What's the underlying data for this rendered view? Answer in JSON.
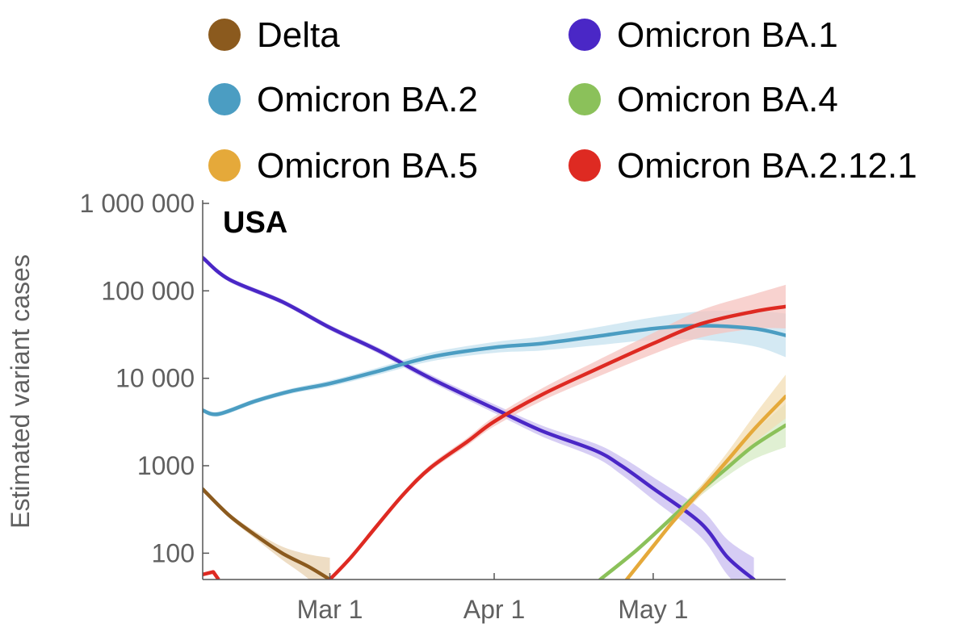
{
  "chart_data": {
    "type": "line",
    "title": "USA",
    "ylabel": "Estimated variant cases",
    "xlabel": "",
    "yscale": "log",
    "ylim": [
      50,
      1000000
    ],
    "xlim": [
      "2022-02-05",
      "2022-05-26"
    ],
    "x_ticks": [
      {
        "date": "2022-03-01",
        "label": "Mar 1"
      },
      {
        "date": "2022-04-01",
        "label": "Apr 1"
      },
      {
        "date": "2022-05-01",
        "label": "May 1"
      }
    ],
    "y_ticks": [
      {
        "value": 100,
        "label": "100"
      },
      {
        "value": 1000,
        "label": "1000"
      },
      {
        "value": 10000,
        "label": "10 000"
      },
      {
        "value": 100000,
        "label": "100 000"
      },
      {
        "value": 1000000,
        "label": "1 000 000"
      }
    ],
    "legend_position": "top",
    "series": [
      {
        "name": "Delta",
        "color": "#8B5A1E",
        "band_color": "#E8D2B0",
        "points": [
          [
            "2022-02-05",
            540
          ],
          [
            "2022-02-10",
            270
          ],
          [
            "2022-02-15",
            160
          ],
          [
            "2022-02-20",
            100
          ],
          [
            "2022-02-25",
            70
          ],
          [
            "2022-03-01",
            50
          ]
        ]
      },
      {
        "name": "Omicron BA.1",
        "color": "#4A27C6",
        "band_color": "#C8BCF0",
        "points": [
          [
            "2022-02-05",
            240000
          ],
          [
            "2022-02-10",
            135000
          ],
          [
            "2022-02-20",
            75000
          ],
          [
            "2022-03-01",
            38000
          ],
          [
            "2022-03-10",
            21000
          ],
          [
            "2022-03-20",
            10000
          ],
          [
            "2022-04-01",
            4500
          ],
          [
            "2022-04-10",
            2500
          ],
          [
            "2022-04-20",
            1500
          ],
          [
            "2022-04-25",
            1000
          ],
          [
            "2022-05-01",
            550
          ],
          [
            "2022-05-10",
            220
          ],
          [
            "2022-05-15",
            90
          ],
          [
            "2022-05-20",
            50
          ]
        ]
      },
      {
        "name": "Omicron BA.2",
        "color": "#4B9DC2",
        "band_color": "#C6E2EF",
        "points": [
          [
            "2022-02-05",
            4300
          ],
          [
            "2022-02-08",
            3900
          ],
          [
            "2022-02-15",
            5500
          ],
          [
            "2022-02-22",
            7200
          ],
          [
            "2022-03-01",
            8700
          ],
          [
            "2022-03-10",
            12000
          ],
          [
            "2022-03-20",
            17500
          ],
          [
            "2022-04-01",
            22500
          ],
          [
            "2022-04-10",
            25000
          ],
          [
            "2022-04-20",
            30000
          ],
          [
            "2022-05-01",
            37000
          ],
          [
            "2022-05-10",
            40000
          ],
          [
            "2022-05-20",
            37000
          ],
          [
            "2022-05-26",
            31000
          ]
        ]
      },
      {
        "name": "Omicron BA.4",
        "color": "#8BC15A",
        "band_color": "#D6EBC4",
        "points": [
          [
            "2022-04-21",
            50
          ],
          [
            "2022-04-28",
            110
          ],
          [
            "2022-05-05",
            270
          ],
          [
            "2022-05-10",
            520
          ],
          [
            "2022-05-15",
            950
          ],
          [
            "2022-05-20",
            1700
          ],
          [
            "2022-05-26",
            2900
          ]
        ]
      },
      {
        "name": "Omicron BA.5",
        "color": "#E5A93A",
        "band_color": "#F3DEB4",
        "points": [
          [
            "2022-04-26",
            50
          ],
          [
            "2022-05-01",
            120
          ],
          [
            "2022-05-05",
            240
          ],
          [
            "2022-05-10",
            520
          ],
          [
            "2022-05-15",
            1150
          ],
          [
            "2022-05-20",
            2600
          ],
          [
            "2022-05-26",
            6200
          ]
        ]
      },
      {
        "name": "Omicron BA.2.12.1",
        "color": "#DE2A22",
        "band_color": "#F5C3BF",
        "points": [
          [
            "2022-03-01",
            50
          ],
          [
            "2022-03-05",
            90
          ],
          [
            "2022-03-10",
            210
          ],
          [
            "2022-03-15",
            480
          ],
          [
            "2022-03-20",
            950
          ],
          [
            "2022-03-27",
            1900
          ],
          [
            "2022-04-01",
            3200
          ],
          [
            "2022-04-10",
            6500
          ],
          [
            "2022-04-20",
            12500
          ],
          [
            "2022-05-01",
            25000
          ],
          [
            "2022-05-10",
            42000
          ],
          [
            "2022-05-20",
            58000
          ],
          [
            "2022-05-26",
            66000
          ]
        ]
      }
    ],
    "annotation_segment": {
      "series": "Omicron BA.2.12.1",
      "points": [
        [
          "2022-02-05",
          57
        ],
        [
          "2022-02-07",
          61
        ],
        [
          "2022-02-08",
          50
        ]
      ]
    }
  }
}
